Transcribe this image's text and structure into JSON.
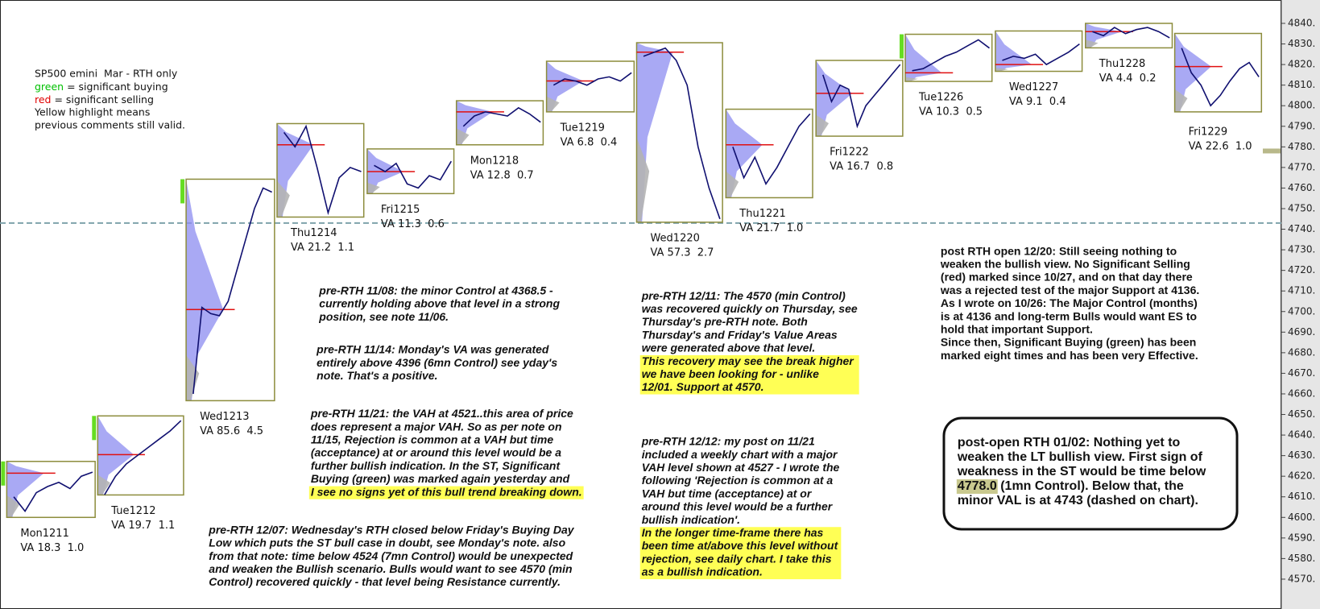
{
  "chart_data": {
    "type": "profile",
    "ylim": [
      4555.5,
      4851.35
    ],
    "yticks": [
      {
        "value": 4840,
        "label": "4840."
      },
      {
        "value": 4830,
        "label": "4830."
      },
      {
        "value": 4820,
        "label": "4820."
      },
      {
        "value": 4810,
        "label": "4810."
      },
      {
        "value": 4800,
        "label": "4800."
      },
      {
        "value": 4790,
        "label": "4790."
      },
      {
        "value": 4780,
        "label": "4780."
      },
      {
        "value": 4770,
        "label": "4770."
      },
      {
        "value": 4760,
        "label": "4760."
      },
      {
        "value": 4750,
        "label": "4750."
      },
      {
        "value": 4740,
        "label": "4740."
      },
      {
        "value": 4730,
        "label": "4730."
      },
      {
        "value": 4720,
        "label": "4720."
      },
      {
        "value": 4710,
        "label": "4710."
      },
      {
        "value": 4700,
        "label": "4700."
      },
      {
        "value": 4690,
        "label": "4690."
      },
      {
        "value": 4680,
        "label": "4680."
      },
      {
        "value": 4670,
        "label": "4670."
      },
      {
        "value": 4660,
        "label": "4660."
      },
      {
        "value": 4650,
        "label": "4650."
      },
      {
        "value": 4640,
        "label": "4640."
      },
      {
        "value": 4630,
        "label": "4630."
      },
      {
        "value": 4620,
        "label": "4620."
      },
      {
        "value": 4610,
        "label": "4610."
      },
      {
        "value": 4600,
        "label": "4600."
      },
      {
        "value": 4590,
        "label": "4590."
      },
      {
        "value": 4580,
        "label": "4580."
      },
      {
        "value": 4570,
        "label": "4570."
      }
    ],
    "dashed_level": 4743,
    "marker_level": 4778,
    "days": [
      {
        "label": "Mon1211",
        "va_text": "VA 18.3  1.0",
        "high": 4627.2,
        "low": 4600,
        "poc": 4621.5,
        "buying": true,
        "prices": [
          4610,
          4603,
          4612,
          4615,
          4617,
          4614,
          4620,
          4622
        ]
      },
      {
        "label": "Tue1212",
        "va_text": "VA 19.7  1.1",
        "high": 4649.3,
        "low": 4610.9,
        "poc": 4630.5,
        "buying": true,
        "prices": [
          4611,
          4620,
          4626,
          4630,
          4634,
          4638,
          4642,
          4647
        ]
      },
      {
        "label": "Wed1213",
        "va_text": "VA 85.6  4.5",
        "high": 4764.3,
        "low": 4656.7,
        "poc": 4701,
        "buying": true,
        "prices": [
          4660,
          4702,
          4699,
          4698,
          4705,
          4720,
          4735,
          4750,
          4760,
          4758
        ]
      },
      {
        "label": "Thu1214",
        "va_text": "VA 21.2  1.1",
        "high": 4791.3,
        "low": 4745.9,
        "poc": 4781,
        "buying": false,
        "prices": [
          4787,
          4780,
          4790,
          4770,
          4748,
          4765,
          4770,
          4768
        ]
      },
      {
        "label": "Fri1215",
        "va_text": "VA 11.3  0.6",
        "high": 4779,
        "low": 4757.3,
        "poc": 4768,
        "buying": false,
        "prices": [
          4771,
          4768,
          4772,
          4762,
          4760,
          4766,
          4764,
          4773
        ]
      },
      {
        "label": "Mon1218",
        "va_text": "VA 12.8  0.7",
        "high": 4802.4,
        "low": 4781,
        "poc": 4797,
        "buying": false,
        "prices": [
          4790,
          4795,
          4797,
          4796,
          4795,
          4799,
          4796,
          4792
        ]
      },
      {
        "label": "Tue1219",
        "va_text": "VA 6.8  0.4",
        "high": 4821.6,
        "low": 4797,
        "poc": 4812,
        "buying": false,
        "prices": [
          4810,
          4813,
          4812,
          4810,
          4813,
          4814,
          4812,
          4816
        ]
      },
      {
        "label": "Wed1220",
        "va_text": "VA 57.3  2.7",
        "high": 4830.6,
        "low": 4743.4,
        "poc": 4826,
        "buying": false,
        "prices": [
          4824,
          4826,
          4828,
          4822,
          4810,
          4780,
          4760,
          4745
        ]
      },
      {
        "label": "Thu1221",
        "va_text": "VA 21.7  1.0",
        "high": 4798.3,
        "low": 4755.3,
        "poc": 4781,
        "buying": false,
        "prices": [
          4780,
          4765,
          4775,
          4762,
          4770,
          4780,
          4790,
          4796
        ]
      },
      {
        "label": "Fri1222",
        "va_text": "VA 16.7  0.8",
        "high": 4822,
        "low": 4785.2,
        "poc": 4806,
        "buying": false,
        "prices": [
          4815,
          4802,
          4810,
          4808,
          4790,
          4800,
          4805,
          4810,
          4815,
          4820
        ]
      },
      {
        "label": "Tue1226",
        "va_text": "VA 10.3  0.5",
        "high": 4834.7,
        "low": 4811.8,
        "poc": 4816,
        "buying": true,
        "prices": [
          4817,
          4818,
          4821,
          4824,
          4826,
          4829,
          4832,
          4828
        ]
      },
      {
        "label": "Wed1227",
        "va_text": "VA 9.1  0.4",
        "high": 4836.3,
        "low": 4816.7,
        "poc": 4820,
        "buying": false,
        "prices": [
          4822,
          4824,
          4823,
          4825,
          4820,
          4823,
          4826,
          4830
        ]
      },
      {
        "label": "Thu1228",
        "va_text": "VA 4.4  0.2",
        "high": 4840,
        "low": 4828.1,
        "poc": 4836,
        "buying": false,
        "prices": [
          4836,
          4834,
          4838,
          4835,
          4837,
          4838,
          4836,
          4833
        ]
      },
      {
        "label": "Fri1229",
        "va_text": "VA 22.6  1.0",
        "high": 4835.1,
        "low": 4797,
        "poc": 4819,
        "buying": false,
        "prices": [
          4828,
          4816,
          4810,
          4800,
          4805,
          4812,
          4818,
          4821,
          4814
        ]
      }
    ]
  },
  "legend": {
    "lines": [
      "SP500 emini  Mar - RTH only",
      [
        "green",
        " = significant buying"
      ],
      [
        "red",
        " = significant selling"
      ],
      "Yellow highlight means",
      "previous comments still valid."
    ]
  },
  "notes": [
    {
      "lines": [
        "pre-RTH 11/08: the minor Control at 4368.5 -",
        "currently holding above that level in a strong",
        "position, see note 11/06."
      ]
    },
    {
      "lines": [
        "pre-RTH 11/14: Monday's VA was generated",
        "entirely above 4396 (6mn Control) see yday's",
        "note. That's a positive."
      ]
    },
    {
      "lines": [
        "pre-RTH 11/21: the VAH at 4521..this area of price",
        "does represent a major VAH. So as per note on",
        "11/15, Rejection is common at a VAH but time",
        "(acceptance) at or around this level would be a",
        "further bullish indication. In the ST, Significant",
        "Buying (green) was marked again yesterday and",
        "I see no signs yet of this bull trend breaking down."
      ],
      "highlight_from": 6
    },
    {
      "lines": [
        "pre-RTH 12/07: Wednesday's RTH closed below Friday's Buying Day",
        "Low which puts the ST bull case in doubt, see Monday's note. also",
        "from that note: time below 4524 (7mn Control) would be unexpected",
        "and weaken the Bullish scenario. Bulls would want to see 4570 (min",
        "Control) recovered quickly - that level being Resistance currently."
      ]
    },
    {
      "lines": [
        "pre-RTH 12/11: The 4570 (min Control)",
        "was recovered quickly on Thursday, see",
        "Thursday's pre-RTH note. Both",
        "Thursday's and Friday's Value Areas",
        "were generated above that level.",
        "This recovery may see the break higher",
        "we have been looking for - unlike",
        "12/01. Support at 4570."
      ],
      "highlight_from": 5
    },
    {
      "lines": [
        "pre-RTH 12/12: my post on 11/21",
        "included a weekly chart with a major",
        "VAH level shown at 4527 - I wrote the",
        "following 'Rejection is common at a",
        "VAH but time (acceptance) at or",
        "around this level would be a further",
        "bullish indication'.",
        "In the longer time-frame there has",
        "been time at/above this level without",
        "rejection, see daily chart. I take this",
        "as a bullish indication."
      ],
      "highlight_from": 7
    },
    {
      "lines": [
        "post RTH open 12/20: Still seeing nothing to",
        "weaken the bullish view. No Significant Selling",
        "(red) marked since 10/27, and on that day there",
        "was a rejected test of the major Support at 4136.",
        "As I wrote on 10/26: The Major Control (months)",
        "is at 4136 and long-term Bulls would want ES to",
        "hold that important Support.",
        "Since then, Significant Buying (green) has been",
        "marked eight times and has been very Effective."
      ]
    }
  ],
  "callout": {
    "lines": [
      "post-open RTH 01/02: Nothing yet to",
      "weaken the LT bullish view. First sign of",
      "weakness in the ST would be time below",
      [
        "4778.0",
        " (1mn Control). Below that, the"
      ],
      "minor VAL is at 4743 (dashed on chart)."
    ]
  }
}
